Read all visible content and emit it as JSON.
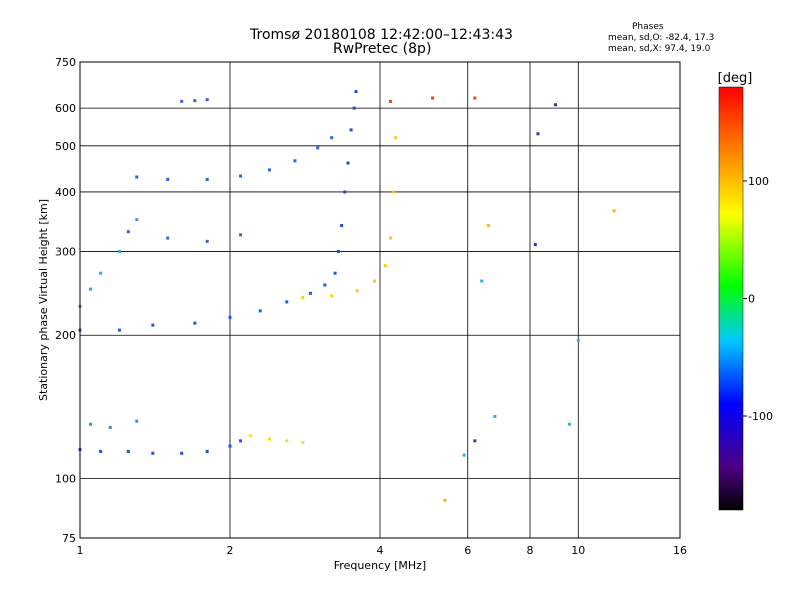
{
  "header": {
    "title_line1": "Tromsø 20180108 12:42:00–12:43:43",
    "title_line2": "RwPretec (8p)",
    "stats_heading": "Phases",
    "stats_o": "mean, sd,O: -82.4, 17.3",
    "stats_x": "mean, sd,X:  97.4, 19.0"
  },
  "chart_data": {
    "type": "scatter",
    "title": "Tromsø 20180108 12:42:00–12:43:43",
    "subtitle": "RwPretec (8p)",
    "xlabel": "Frequency [MHz]",
    "ylabel": "Stationary phase Virtual Height [km]",
    "x_scale": "log",
    "y_scale": "log",
    "xlim": [
      1,
      16
    ],
    "ylim": [
      75,
      750
    ],
    "x_ticks": [
      1,
      2,
      4,
      6,
      8,
      10,
      16
    ],
    "x_tick_labels": [
      "1",
      "2",
      "4",
      "6",
      "8",
      "10",
      "16"
    ],
    "y_ticks": [
      75,
      100,
      200,
      300,
      400,
      500,
      600,
      750
    ],
    "y_tick_labels": [
      "75",
      "100",
      "200",
      "300",
      "400",
      "500",
      "600",
      "750"
    ],
    "grid": true,
    "colorbar": {
      "label": "[deg]",
      "range": [
        -180,
        180
      ],
      "ticks": [
        100,
        0,
        -100
      ],
      "tick_labels": [
        "100",
        "0",
        "-100"
      ],
      "colors": [
        "#000000",
        "#4b0082",
        "#0000ff",
        "#00c8ff",
        "#00ff00",
        "#ffff00",
        "#ff8000",
        "#ff0000"
      ]
    },
    "series": [
      {
        "color": "#1e50dc",
        "x": [
          1.0,
          1.1,
          1.25,
          1.4,
          1.6,
          1.8,
          2.0,
          2.1
        ],
        "y": [
          115,
          114,
          114,
          113,
          113,
          114,
          117,
          120
        ]
      },
      {
        "color": "#3c8ce6",
        "x": [
          1.05,
          1.15,
          1.3
        ],
        "y": [
          130,
          128,
          132
        ]
      },
      {
        "color": "#e6e61e",
        "x": [
          2.2,
          2.4,
          2.6,
          2.8
        ],
        "y": [
          123,
          121,
          120,
          119
        ]
      },
      {
        "color": "#1e5adc",
        "x": [
          1.0,
          1.2,
          1.4,
          1.7,
          2.0,
          2.3,
          2.6,
          2.9,
          3.1,
          3.25
        ],
        "y": [
          205,
          205,
          210,
          212,
          218,
          225,
          235,
          245,
          255,
          270
        ]
      },
      {
        "color": "#2846dc",
        "x": [
          3.3,
          3.35,
          3.4,
          3.45,
          3.5,
          3.55,
          3.58
        ],
        "y": [
          300,
          340,
          400,
          460,
          540,
          600,
          650
        ]
      },
      {
        "color": "#ffc814",
        "x": [
          2.8,
          3.2,
          3.6,
          3.9,
          4.1,
          4.2,
          4.25,
          4.3
        ],
        "y": [
          240,
          242,
          248,
          260,
          280,
          320,
          400,
          520
        ]
      },
      {
        "color": "#2864dc",
        "x": [
          1.3,
          1.5,
          1.8,
          2.1,
          2.4,
          2.7,
          3.0,
          3.2
        ],
        "y": [
          430,
          425,
          425,
          432,
          445,
          465,
          495,
          520
        ]
      },
      {
        "color": "#3c64c8",
        "x": [
          1.25,
          1.5,
          1.8,
          2.1
        ],
        "y": [
          330,
          320,
          315,
          325
        ]
      },
      {
        "color": "#3ca0e6",
        "x": [
          1.0,
          1.05,
          1.1,
          1.2,
          1.3
        ],
        "y": [
          230,
          250,
          270,
          300,
          350
        ]
      },
      {
        "color": "#3c5adc",
        "x": [
          1.6,
          1.8,
          1.7
        ],
        "y": [
          620,
          625,
          622
        ]
      },
      {
        "color": "#ff3c00",
        "x": [
          4.2,
          5.1,
          6.2
        ],
        "y": [
          620,
          630,
          630
        ]
      },
      {
        "color": "#28b4e6",
        "x": [
          5.9,
          6.4,
          6.8,
          9.6,
          10.0
        ],
        "y": [
          112,
          260,
          135,
          130,
          195
        ]
      },
      {
        "color": "#ffb400",
        "x": [
          5.4,
          6.6,
          11.8
        ],
        "y": [
          90,
          340,
          365
        ]
      },
      {
        "color": "#3232b4",
        "x": [
          8.3,
          8.2,
          9.0,
          6.2
        ],
        "y": [
          530,
          310,
          610,
          120
        ]
      }
    ]
  }
}
